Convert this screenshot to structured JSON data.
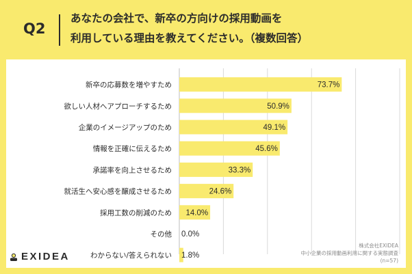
{
  "header": {
    "question_label": "Q2",
    "question_line1": "あなたの会社で、新卒の方向けの採用動画を",
    "question_line2": "利用している理由を教えてください。（複数回答）"
  },
  "footer": {
    "line1": "株式会社EXIDEA",
    "line2": "中小企業の採用動画利用に関する実態調査",
    "line3": "(n=57)"
  },
  "brand": {
    "logo_text": "EXIDEA",
    "accent_color": "#f9ea6e",
    "bar_color": "#f9ea6e",
    "text_color": "#2b2b2b"
  },
  "chart_data": {
    "type": "bar",
    "orientation": "horizontal",
    "categories": [
      "新卒の応募数を増やすため",
      "欲しい人材へアプローチするため",
      "企業のイメージアップのため",
      "情報を正確に伝えるため",
      "承諾率を向上させるため",
      "就活生へ安心感を醸成させるため",
      "採用工数の削減のため",
      "その他",
      "わからない/答えられない"
    ],
    "values": [
      73.7,
      50.9,
      49.1,
      45.6,
      33.3,
      24.6,
      14.0,
      0.0,
      1.8
    ],
    "value_labels": [
      "73.7%",
      "50.9%",
      "49.1%",
      "45.6%",
      "33.3%",
      "24.6%",
      "14.0%",
      "0.0%",
      "1.8%"
    ],
    "xlim": [
      0,
      100
    ],
    "unit": "%",
    "grid": true
  }
}
